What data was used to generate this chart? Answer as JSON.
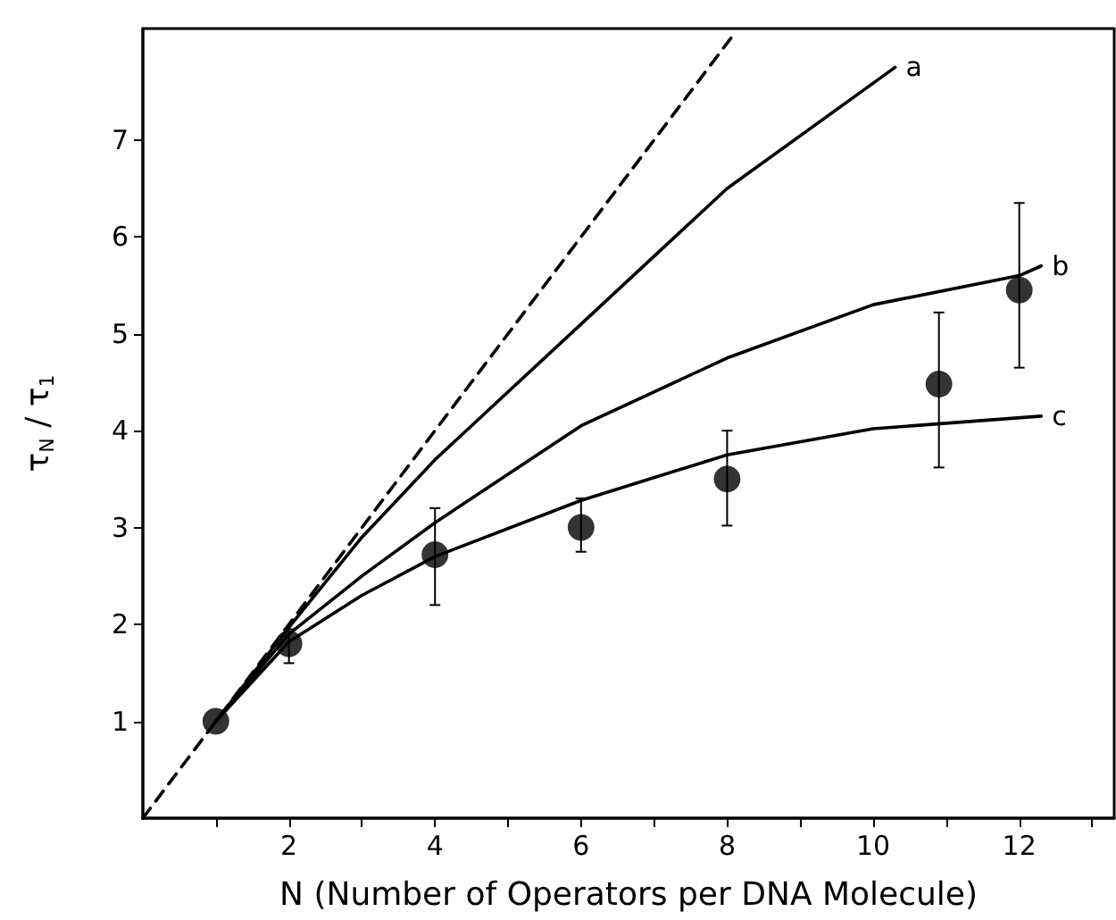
{
  "chart_data": {
    "type": "line",
    "xlabel": "N (Number of Operators per DNA Molecule)",
    "ylabel": "τ$_{N}$ / τ$_{1}$",
    "xlim": [
      0,
      13.3
    ],
    "ylim": [
      0,
      8.15
    ],
    "xticks": [
      {
        "value": 1,
        "label": null
      },
      2,
      {
        "value": 3,
        "label": null
      },
      4,
      {
        "value": 5,
        "label": null
      },
      6,
      {
        "value": 7,
        "label": null
      },
      8,
      {
        "value": 9,
        "label": null
      },
      10,
      {
        "value": 11,
        "label": null
      },
      12,
      {
        "value": 13,
        "label": null
      }
    ],
    "yticks": [
      1,
      2,
      3,
      4,
      5,
      6,
      7
    ],
    "grid": false,
    "legend": false,
    "series": [
      {
        "color": "#000000",
        "line_style": "dashed",
        "marker": "none",
        "x": [
          0,
          8.1
        ],
        "values": [
          0,
          8.1
        ]
      },
      {
        "name": "a",
        "color": "#000000",
        "line_style": "solid",
        "marker": "none",
        "x": [
          1,
          2,
          3,
          4,
          6,
          8,
          10.3
        ],
        "values": [
          1,
          1.97,
          2.9,
          3.7,
          5.1,
          6.5,
          7.75
        ]
      },
      {
        "name": "b",
        "color": "#000000",
        "line_style": "solid",
        "marker": "none",
        "x": [
          1,
          2,
          3,
          4,
          6,
          8,
          10,
          12,
          12.3
        ],
        "values": [
          1,
          1.9,
          2.5,
          3.05,
          4.05,
          4.75,
          5.3,
          5.6,
          5.7
        ]
      },
      {
        "name": "c",
        "color": "#000000",
        "line_style": "solid",
        "marker": "none",
        "x": [
          1,
          2,
          3,
          4,
          6,
          8,
          10,
          12.3
        ],
        "values": [
          1,
          1.82,
          2.3,
          2.7,
          3.28,
          3.75,
          4.02,
          4.15
        ]
      },
      {
        "type": "scatter",
        "color": "#000000",
        "marker": "circle",
        "x": [
          1,
          2,
          4,
          6,
          8,
          10.9,
          12
        ],
        "values": [
          1,
          1.8,
          2.72,
          3.0,
          3.5,
          4.48,
          5.45
        ],
        "errors": [
          null,
          [
            1.6,
            1.95
          ],
          [
            2.2,
            3.2
          ],
          [
            2.75,
            3.3
          ],
          [
            3.02,
            4.0
          ],
          [
            3.62,
            5.22
          ],
          [
            4.65,
            6.35
          ]
        ]
      }
    ]
  }
}
